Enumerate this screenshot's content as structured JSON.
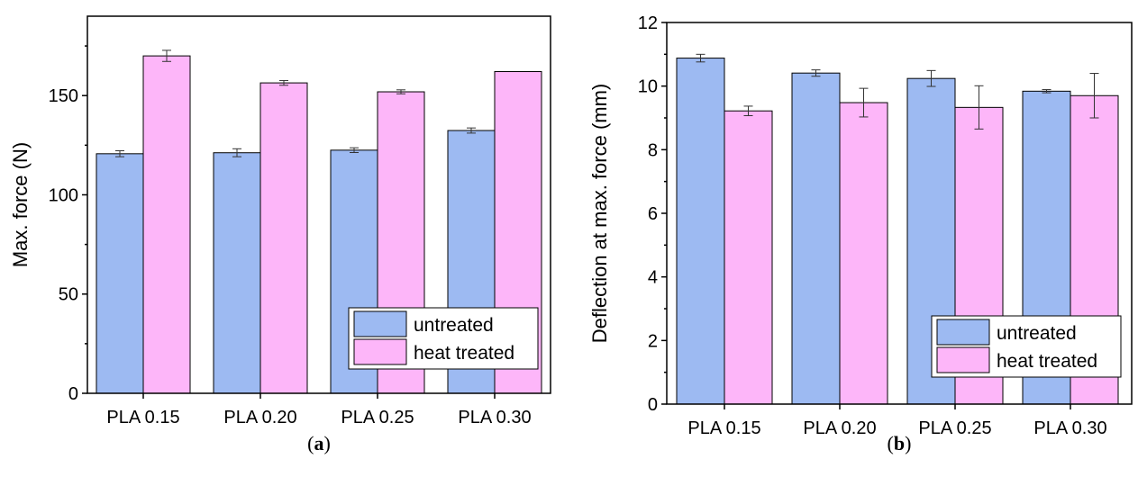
{
  "colors": {
    "untreated": "#9dbaf2",
    "heat_treated": "#fdb6f9"
  },
  "chart_data": [
    {
      "id": "a",
      "type": "bar",
      "panel_label": "a",
      "categories": [
        "PLA 0.15",
        "PLA 0.20",
        "PLA 0.25",
        "PLA 0.30"
      ],
      "series": [
        {
          "name": "untreated",
          "values": [
            120.7,
            121.2,
            122.5,
            132.4
          ],
          "errors": [
            1.5,
            2.0,
            1.2,
            1.3
          ]
        },
        {
          "name": "heat treated",
          "values": [
            170.0,
            156.4,
            151.9,
            162.1
          ],
          "errors": [
            2.8,
            1.2,
            1.0,
            0.0
          ]
        }
      ],
      "ylabel": "Max. force (N)",
      "ylim": [
        0,
        190
      ],
      "yticks": [
        0,
        50,
        100,
        150
      ],
      "legend": "bottom-right",
      "grid": false
    },
    {
      "id": "b",
      "type": "bar",
      "panel_label": "b",
      "categories": [
        "PLA 0.15",
        "PLA 0.20",
        "PLA 0.25",
        "PLA 0.30"
      ],
      "series": [
        {
          "name": "untreated",
          "values": [
            10.88,
            10.41,
            10.24,
            9.84
          ],
          "errors": [
            0.12,
            0.1,
            0.25,
            0.05
          ]
        },
        {
          "name": "heat treated",
          "values": [
            9.22,
            9.48,
            9.33,
            9.7
          ],
          "errors": [
            0.15,
            0.45,
            0.68,
            0.7
          ]
        }
      ],
      "ylabel": "Deflection at max. force (mm)",
      "ylim": [
        0,
        12
      ],
      "yticks": [
        0,
        2,
        4,
        6,
        8,
        10,
        12
      ],
      "legend": "bottom-right",
      "grid": false
    }
  ]
}
